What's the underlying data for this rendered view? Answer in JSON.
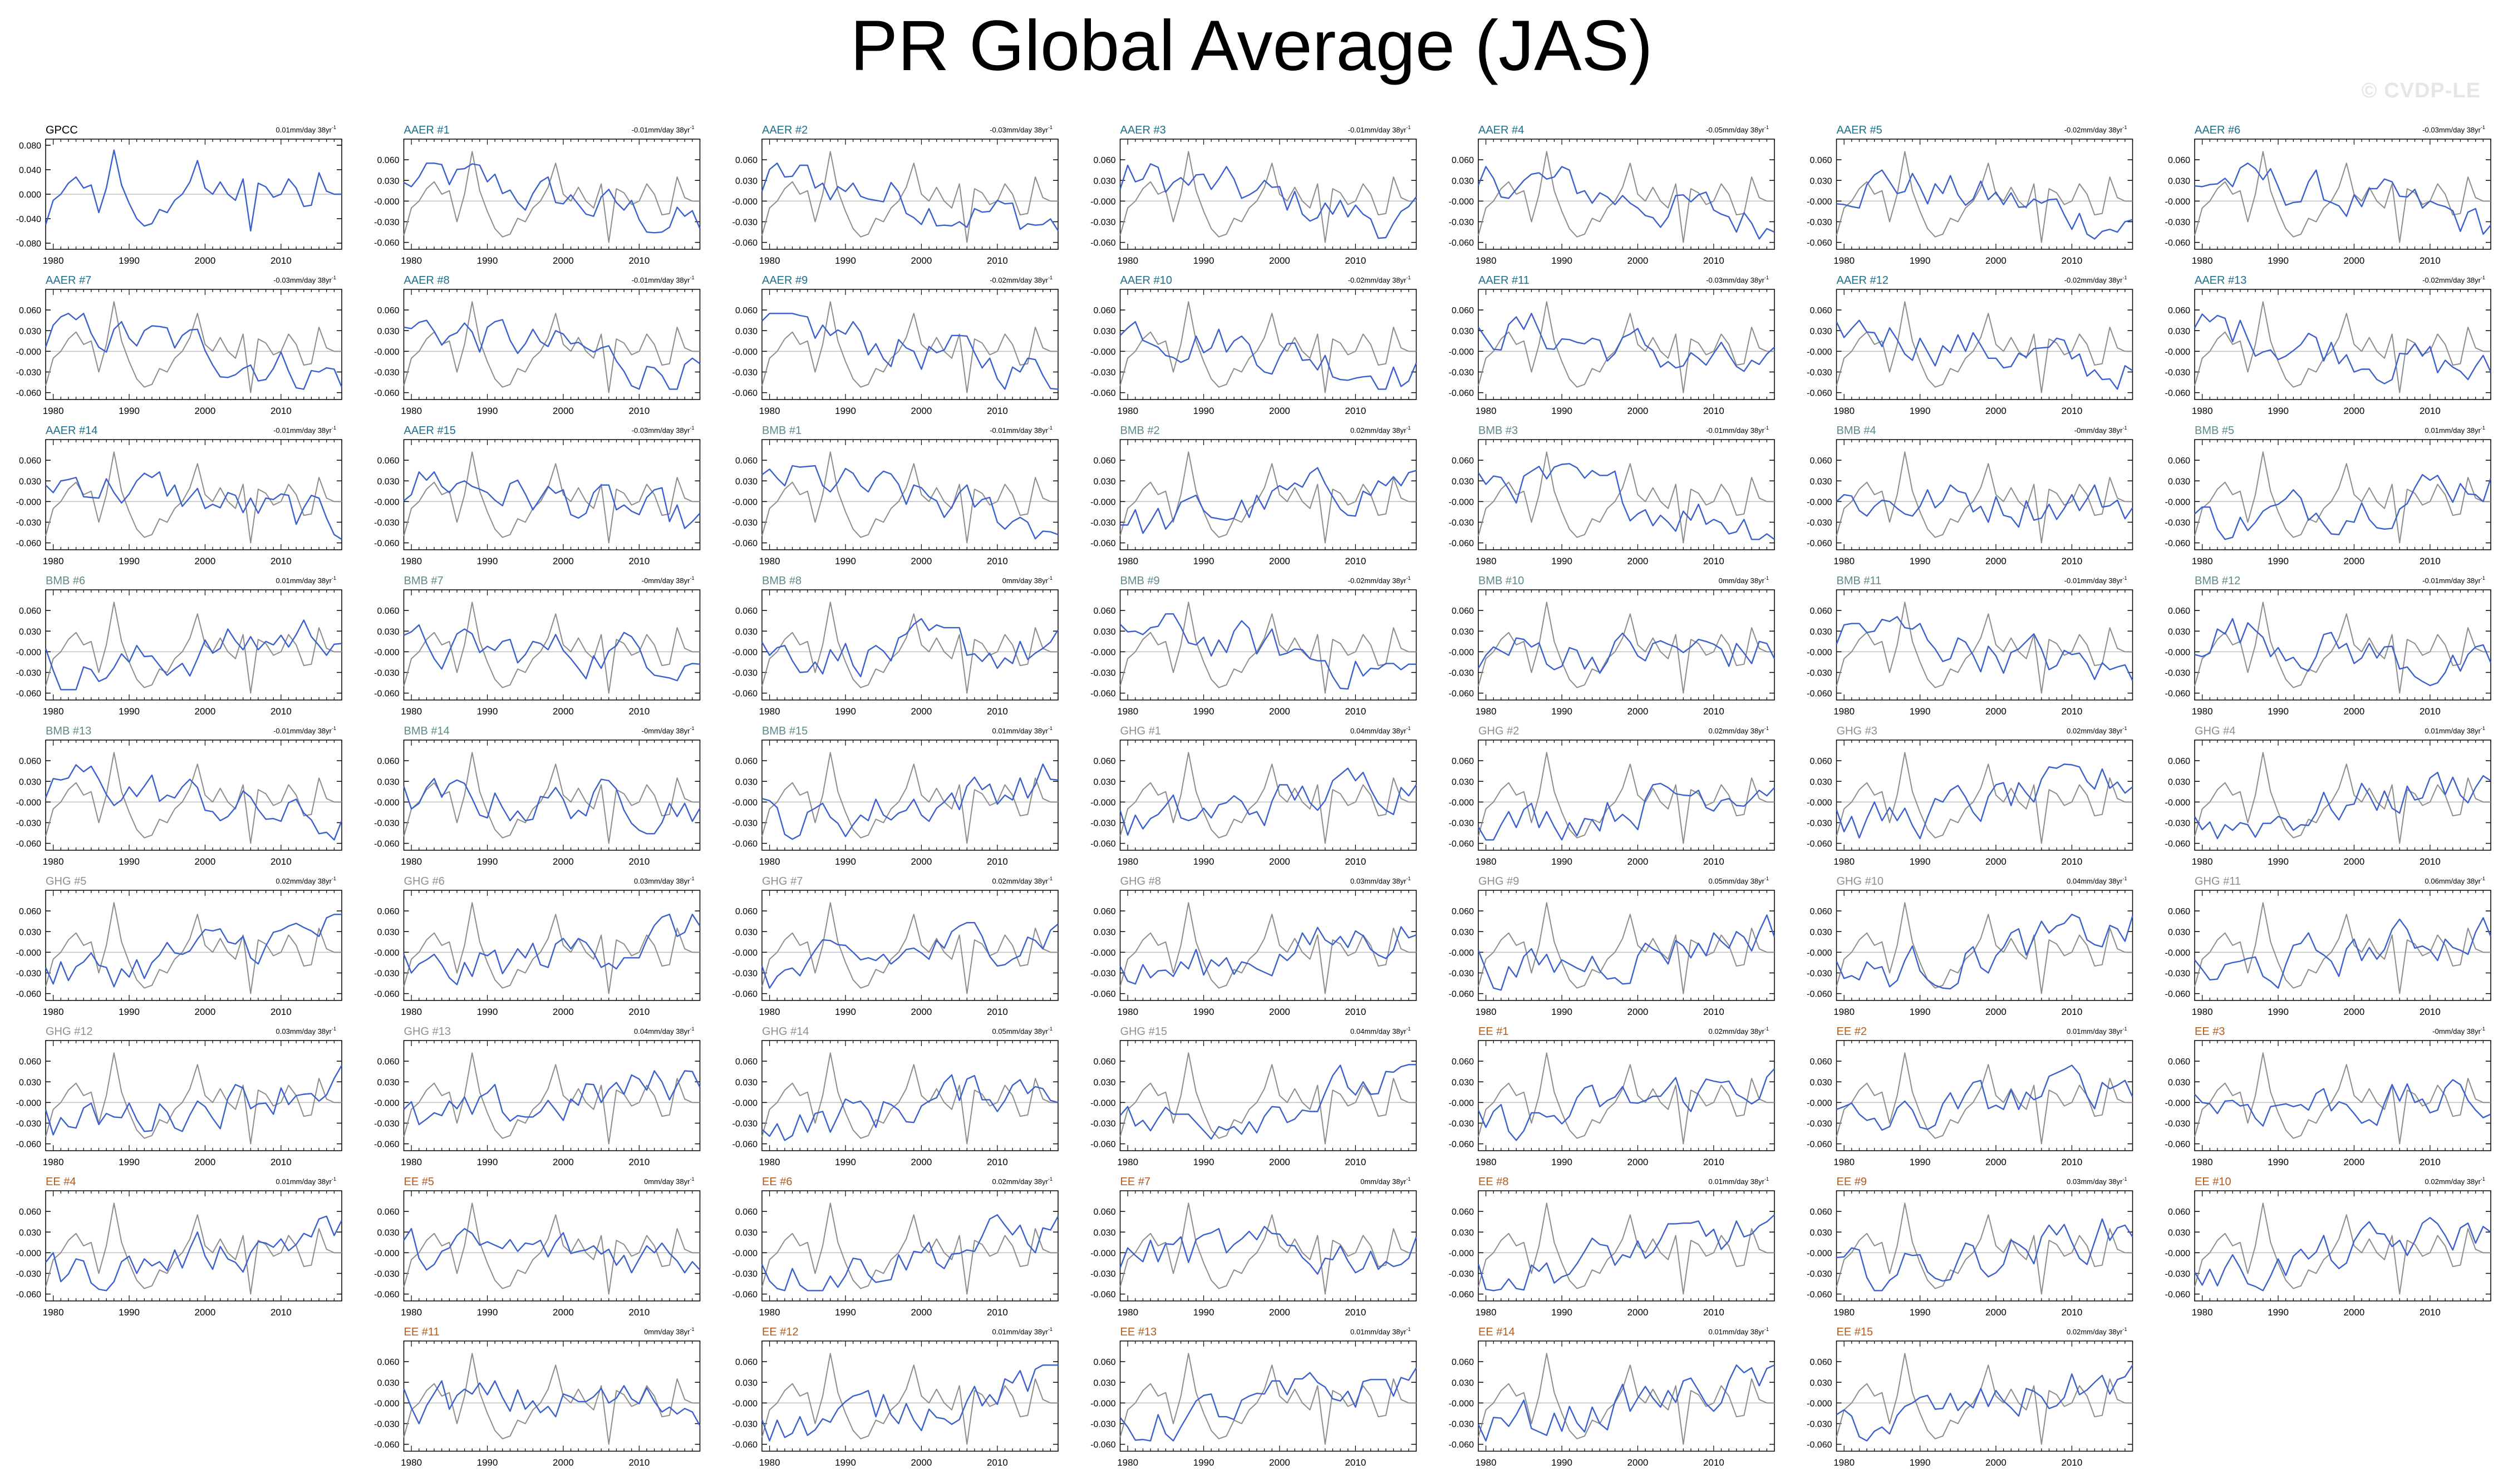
{
  "page": {
    "title": "PR Global Average (JAS)",
    "watermark": "© CVDP-LE"
  },
  "colors": {
    "model": "#3b5fcc",
    "observed": "#8c8c8c",
    "zero_line": "#bfbfbf",
    "obs_label": "#000000",
    "AERR": "#1d6f8f",
    "BMB": "#5f8a8a",
    "GHG": "#8f8f8f",
    "EE": "#b35a1f"
  },
  "chart_data": {
    "type": "line",
    "grid": false,
    "x_ticks": [
      1980,
      1990,
      2000,
      2010
    ],
    "years": [
      1979,
      1980,
      1981,
      1982,
      1983,
      1984,
      1985,
      1986,
      1987,
      1988,
      1989,
      1990,
      1991,
      1992,
      1993,
      1994,
      1995,
      1996,
      1997,
      1998,
      1999,
      2000,
      2001,
      2002,
      2003,
      2004,
      2005,
      2006,
      2007,
      2008,
      2009,
      2010,
      2011,
      2012,
      2013,
      2014,
      2015,
      2016,
      2017,
      2018
    ],
    "observed_series": [
      -0.05,
      -0.01,
      0.0,
      0.018,
      0.028,
      0.01,
      0.015,
      -0.03,
      0.01,
      0.072,
      0.015,
      -0.015,
      -0.04,
      -0.052,
      -0.048,
      -0.025,
      -0.03,
      -0.01,
      0.0,
      0.02,
      0.055,
      0.01,
      0.0,
      0.02,
      0.0,
      -0.01,
      0.025,
      -0.06,
      0.018,
      0.012,
      -0.005,
      0.0,
      0.025,
      0.01,
      -0.02,
      -0.018,
      0.035,
      0.005,
      0.0,
      0.0
    ],
    "panels": [
      {
        "label": "GPCC",
        "group": "obs",
        "trend": "0.01mm/day 38yr",
        "y_ticks": [
          "0.080",
          "0.040",
          "0.000",
          "-0.040",
          "-0.080"
        ],
        "y_values": [
          0.08,
          0.04,
          0,
          -0.04,
          -0.08
        ],
        "ylim": [
          -0.09,
          0.09
        ]
      },
      {
        "label": "AAER #1",
        "group": "AERR",
        "trend": "-0.01mm/day 38yr"
      },
      {
        "label": "AAER #2",
        "group": "AERR",
        "trend": "-0.03mm/day 38yr"
      },
      {
        "label": "AAER #3",
        "group": "AERR",
        "trend": "-0.01mm/day 38yr"
      },
      {
        "label": "AAER #4",
        "group": "AERR",
        "trend": "-0.05mm/day 38yr"
      },
      {
        "label": "AAER #5",
        "group": "AERR",
        "trend": "-0.02mm/day 38yr"
      },
      {
        "label": "AAER #6",
        "group": "AERR",
        "trend": "-0.03mm/day 38yr"
      },
      {
        "label": "AAER #7",
        "group": "AERR",
        "trend": "-0.03mm/day 38yr"
      },
      {
        "label": "AAER #8",
        "group": "AERR",
        "trend": "-0.01mm/day 38yr"
      },
      {
        "label": "AAER #9",
        "group": "AERR",
        "trend": "-0.02mm/day 38yr"
      },
      {
        "label": "AAER #10",
        "group": "AERR",
        "trend": "-0.02mm/day 38yr"
      },
      {
        "label": "AAER #11",
        "group": "AERR",
        "trend": "-0.03mm/day 38yr"
      },
      {
        "label": "AAER #12",
        "group": "AERR",
        "trend": "-0.02mm/day 38yr"
      },
      {
        "label": "AAER #13",
        "group": "AERR",
        "trend": "-0.02mm/day 38yr"
      },
      {
        "label": "AAER #14",
        "group": "AERR",
        "trend": "-0.01mm/day 38yr"
      },
      {
        "label": "AAER #15",
        "group": "AERR",
        "trend": "-0.03mm/day 38yr"
      },
      {
        "label": "BMB #1",
        "group": "BMB",
        "trend": "-0.01mm/day 38yr"
      },
      {
        "label": "BMB #2",
        "group": "BMB",
        "trend": "0.02mm/day 38yr"
      },
      {
        "label": "BMB #3",
        "group": "BMB",
        "trend": "-0.01mm/day 38yr"
      },
      {
        "label": "BMB #4",
        "group": "BMB",
        "trend": "-0mm/day 38yr"
      },
      {
        "label": "BMB #5",
        "group": "BMB",
        "trend": "0.01mm/day 38yr"
      },
      {
        "label": "BMB #6",
        "group": "BMB",
        "trend": "0.01mm/day 38yr"
      },
      {
        "label": "BMB #7",
        "group": "BMB",
        "trend": "-0mm/day 38yr"
      },
      {
        "label": "BMB #8",
        "group": "BMB",
        "trend": "0mm/day 38yr"
      },
      {
        "label": "BMB #9",
        "group": "BMB",
        "trend": "-0.02mm/day 38yr"
      },
      {
        "label": "BMB #10",
        "group": "BMB",
        "trend": "0mm/day 38yr"
      },
      {
        "label": "BMB #11",
        "group": "BMB",
        "trend": "-0.01mm/day 38yr"
      },
      {
        "label": "BMB #12",
        "group": "BMB",
        "trend": "-0.01mm/day 38yr"
      },
      {
        "label": "BMB #13",
        "group": "BMB",
        "trend": "-0.01mm/day 38yr"
      },
      {
        "label": "BMB #14",
        "group": "BMB",
        "trend": "-0mm/day 38yr"
      },
      {
        "label": "BMB #15",
        "group": "BMB",
        "trend": "0.01mm/day 38yr"
      },
      {
        "label": "GHG #1",
        "group": "GHG",
        "trend": "0.04mm/day 38yr"
      },
      {
        "label": "GHG #2",
        "group": "GHG",
        "trend": "0.02mm/day 38yr"
      },
      {
        "label": "GHG #3",
        "group": "GHG",
        "trend": "0.02mm/day 38yr"
      },
      {
        "label": "GHG #4",
        "group": "GHG",
        "trend": "0.01mm/day 38yr"
      },
      {
        "label": "GHG #5",
        "group": "GHG",
        "trend": "0.02mm/day 38yr"
      },
      {
        "label": "GHG #6",
        "group": "GHG",
        "trend": "0.03mm/day 38yr"
      },
      {
        "label": "GHG #7",
        "group": "GHG",
        "trend": "0.02mm/day 38yr"
      },
      {
        "label": "GHG #8",
        "group": "GHG",
        "trend": "0.03mm/day 38yr"
      },
      {
        "label": "GHG #9",
        "group": "GHG",
        "trend": "0.05mm/day 38yr"
      },
      {
        "label": "GHG #10",
        "group": "GHG",
        "trend": "0.04mm/day 38yr"
      },
      {
        "label": "GHG #11",
        "group": "GHG",
        "trend": "0.06mm/day 38yr"
      },
      {
        "label": "GHG #12",
        "group": "GHG",
        "trend": "0.03mm/day 38yr"
      },
      {
        "label": "GHG #13",
        "group": "GHG",
        "trend": "0.04mm/day 38yr"
      },
      {
        "label": "GHG #14",
        "group": "GHG",
        "trend": "0.05mm/day 38yr"
      },
      {
        "label": "GHG #15",
        "group": "GHG",
        "trend": "0.04mm/day 38yr"
      },
      {
        "label": "EE #1",
        "group": "EE",
        "trend": "0.02mm/day 38yr"
      },
      {
        "label": "EE #2",
        "group": "EE",
        "trend": "0.01mm/day 38yr"
      },
      {
        "label": "EE #3",
        "group": "EE",
        "trend": "-0mm/day 38yr"
      },
      {
        "label": "EE #4",
        "group": "EE",
        "trend": "0.01mm/day 38yr"
      },
      {
        "label": "EE #5",
        "group": "EE",
        "trend": "0mm/day 38yr"
      },
      {
        "label": "EE #6",
        "group": "EE",
        "trend": "0.02mm/day 38yr"
      },
      {
        "label": "EE #7",
        "group": "EE",
        "trend": "0mm/day 38yr"
      },
      {
        "label": "EE #8",
        "group": "EE",
        "trend": "0.01mm/day 38yr"
      },
      {
        "label": "EE #9",
        "group": "EE",
        "trend": "0.03mm/day 38yr"
      },
      {
        "label": "EE #10",
        "group": "EE",
        "trend": "0.02mm/day 38yr"
      },
      {
        "label": "EE #11",
        "group": "EE",
        "trend": "0mm/day 38yr"
      },
      {
        "label": "EE #12",
        "group": "EE",
        "trend": "0.01mm/day 38yr"
      },
      {
        "label": "EE #13",
        "group": "EE",
        "trend": "0.01mm/day 38yr"
      },
      {
        "label": "EE #14",
        "group": "EE",
        "trend": "0.01mm/day 38yr"
      },
      {
        "label": "EE #15",
        "group": "EE",
        "trend": "0.02mm/day 38yr"
      }
    ],
    "model_y_ticks": [
      "0.060",
      "0.030",
      "-0.000",
      "-0.030",
      "-0.060"
    ],
    "model_y_values": [
      0.06,
      0.03,
      0,
      -0.03,
      -0.06
    ],
    "model_ylim": [
      -0.07,
      0.09
    ]
  }
}
